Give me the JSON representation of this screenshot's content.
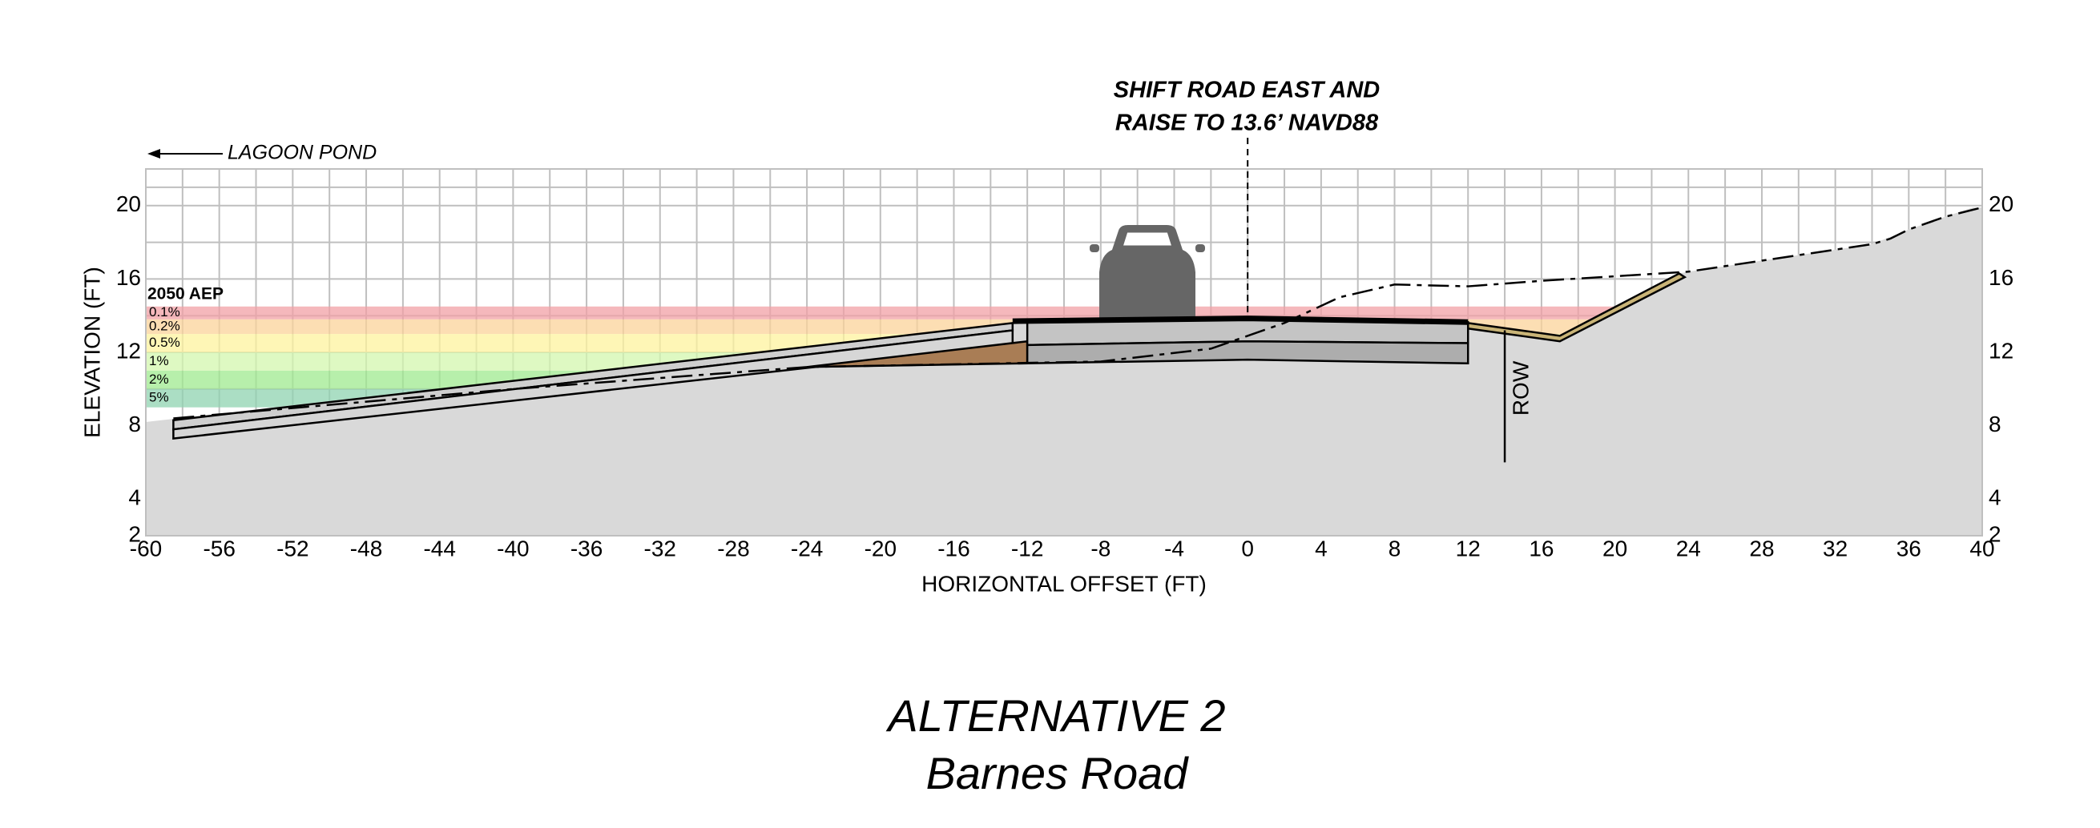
{
  "chart_data": {
    "type": "cross-section",
    "annotation": {
      "lines": [
        "SHIFT ROAD EAST AND",
        "RAISE TO 13.6’ NAVD88"
      ],
      "x": 0
    },
    "direction_label": "LAGOON POND",
    "aep": {
      "title": "2050 AEP",
      "bands": [
        {
          "label": "0.1%",
          "range": [
            13.8,
            14.5
          ],
          "color": "#f2a0a6"
        },
        {
          "label": "0.2%",
          "range": [
            13.0,
            13.8
          ],
          "color": "#fbd39a"
        },
        {
          "label": "0.5%",
          "range": [
            12.0,
            13.0
          ],
          "color": "#fdf39e"
        },
        {
          "label": "1%",
          "range": [
            11.0,
            12.0
          ],
          "color": "#d3f7ae"
        },
        {
          "label": "2%",
          "range": [
            10.0,
            11.0
          ],
          "color": "#9fe98f"
        },
        {
          "label": "5%",
          "range": [
            9.0,
            10.0
          ],
          "color": "#8fd3b0"
        }
      ]
    },
    "xlabel": "HORIZONTAL OFFSET (FT)",
    "ylabel": "ELEVATION (FT)",
    "xlim": [
      -60,
      40
    ],
    "ylim": [
      2,
      22
    ],
    "xticks": [
      -60,
      -56,
      -52,
      -48,
      -44,
      -40,
      -36,
      -32,
      -28,
      -24,
      -20,
      -16,
      -12,
      -8,
      -4,
      0,
      4,
      8,
      12,
      16,
      20,
      24,
      28,
      32,
      36,
      40
    ],
    "yticks": [
      2,
      4,
      8,
      12,
      16,
      20
    ],
    "grid": true,
    "row": {
      "label": "ROW",
      "x": 14,
      "y": [
        6,
        13.2
      ]
    },
    "ground": {
      "color": "#d9d9d9",
      "x": [
        -60,
        -12.8,
        0,
        12,
        17,
        23.5,
        24,
        30,
        34,
        36,
        38,
        39.5,
        40
      ],
      "y": [
        8.2,
        13.6,
        13.8,
        13.6,
        12.7,
        16.3,
        16.4,
        17.3,
        17.9,
        18.7,
        19.4,
        19.9,
        19.9
      ]
    },
    "existing_ground": {
      "color": "#000000",
      "x": [
        -58.5,
        -40,
        -24,
        -8,
        -2,
        2,
        5,
        8,
        12,
        16,
        24,
        30,
        34,
        35,
        36,
        38,
        40
      ],
      "y": [
        8.4,
        10.0,
        11.2,
        11.5,
        12.2,
        13.6,
        15.0,
        15.7,
        15.6,
        15.9,
        16.4,
        17.3,
        17.9,
        18.2,
        18.7,
        19.4,
        19.9
      ]
    },
    "structures": [
      {
        "fill": "#cfcfcf",
        "x": [
          -58.5,
          -12.8,
          -12.8,
          -58.5
        ],
        "y": [
          8.3,
          13.6,
          13.2,
          7.8
        ]
      },
      {
        "fill": "#d6d6d6",
        "x": [
          -58.5,
          -12.8,
          -12.8,
          -58.5
        ],
        "y": [
          7.8,
          13.2,
          12.4,
          7.3
        ]
      },
      {
        "fill": "#a97d55",
        "x": [
          -24,
          -12,
          -12
        ],
        "y": [
          11.2,
          12.6,
          11.4
        ]
      },
      {
        "fill": "#c4c4c4",
        "x": [
          -12,
          0,
          12,
          12,
          0,
          -12
        ],
        "y": [
          13.7,
          13.85,
          13.65,
          12.5,
          12.6,
          12.4
        ]
      },
      {
        "fill": "#adadad",
        "x": [
          -12,
          0,
          12,
          12,
          0,
          -12
        ],
        "y": [
          12.4,
          12.6,
          12.5,
          11.4,
          11.6,
          11.4
        ]
      },
      {
        "fill": "#c9b477",
        "x": [
          12,
          17,
          23.5,
          23.8,
          17,
          12
        ],
        "y": [
          13.6,
          12.9,
          16.3,
          16.1,
          12.6,
          13.3
        ]
      }
    ],
    "pavement": {
      "x": [
        -12.8,
        0,
        12
      ],
      "y": [
        13.7,
        13.85,
        13.65
      ]
    },
    "caption": {
      "title": "ALTERNATIVE 2",
      "subtitle": "Barnes Road"
    }
  }
}
